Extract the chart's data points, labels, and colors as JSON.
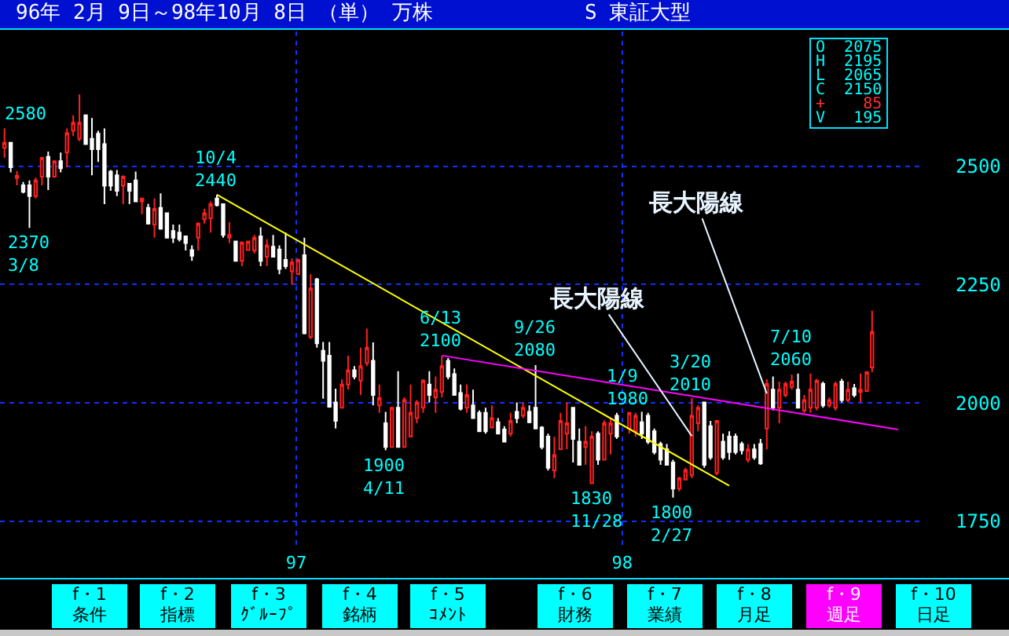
{
  "chart_data": {
    "type": "candlestick",
    "title": "96年 2月 9日～98年10月 8日 （単） 万株",
    "subtitle": "S 東証大型",
    "x": [
      "1996-02-09",
      "1996-02-16",
      "1996-02-23",
      "1996-03-01",
      "1996-03-08",
      "1996-03-15",
      "1996-03-22",
      "1996-03-29",
      "1996-04-05",
      "1996-04-12",
      "1996-04-19",
      "1996-04-26",
      "1996-05-03",
      "1996-05-10",
      "1996-05-17",
      "1996-05-24",
      "1996-05-31",
      "1996-06-07",
      "1996-06-14",
      "1996-06-21",
      "1996-06-28",
      "1996-07-05",
      "1996-07-12",
      "1996-07-19",
      "1996-07-26",
      "1996-08-02",
      "1996-08-09",
      "1996-08-16",
      "1996-08-23",
      "1996-08-30",
      "1996-09-06",
      "1996-09-13",
      "1996-09-20",
      "1996-09-27",
      "1996-10-04",
      "1996-10-11",
      "1996-10-18",
      "1996-10-25",
      "1996-11-01",
      "1996-11-08",
      "1996-11-15",
      "1996-11-22",
      "1996-11-29",
      "1996-12-06",
      "1996-12-13",
      "1996-12-20",
      "1996-12-27",
      "1997-01-03",
      "1997-01-10",
      "1997-01-17",
      "1997-01-24",
      "1997-01-31",
      "1997-02-07",
      "1997-02-14",
      "1997-02-21",
      "1997-02-28",
      "1997-03-07",
      "1997-03-14",
      "1997-03-21",
      "1997-03-28",
      "1997-04-04",
      "1997-04-11",
      "1997-04-18",
      "1997-04-25",
      "1997-05-02",
      "1997-05-09",
      "1997-05-16",
      "1997-05-23",
      "1997-05-30",
      "1997-06-06",
      "1997-06-13",
      "1997-06-20",
      "1997-06-27",
      "1997-07-04",
      "1997-07-11",
      "1997-07-18",
      "1997-07-25",
      "1997-08-01",
      "1997-08-08",
      "1997-08-15",
      "1997-08-22",
      "1997-08-29",
      "1997-09-05",
      "1997-09-12",
      "1997-09-19",
      "1997-09-26",
      "1997-10-03",
      "1997-10-10",
      "1997-10-17",
      "1997-10-24",
      "1997-10-31",
      "1997-11-07",
      "1997-11-14",
      "1997-11-21",
      "1997-11-28",
      "1997-12-05",
      "1997-12-12",
      "1997-12-19",
      "1997-12-26",
      "1998-01-09",
      "1998-01-16",
      "1998-01-23",
      "1998-01-30",
      "1998-02-06",
      "1998-02-13",
      "1998-02-20",
      "1998-02-27",
      "1998-03-06",
      "1998-03-13",
      "1998-03-20",
      "1998-03-27",
      "1998-04-03",
      "1998-04-10",
      "1998-04-17",
      "1998-04-24",
      "1998-05-01",
      "1998-05-08",
      "1998-05-15",
      "1998-05-22",
      "1998-05-29",
      "1998-06-05",
      "1998-06-12",
      "1998-06-19",
      "1998-06-26",
      "1998-07-03",
      "1998-07-10",
      "1998-07-17",
      "1998-07-24",
      "1998-07-31",
      "1998-08-07",
      "1998-08-14",
      "1998-08-21",
      "1998-08-28",
      "1998-09-04",
      "1998-09-11",
      "1998-09-18",
      "1998-09-25",
      "1998-10-02",
      "1998-10-08"
    ],
    "ohlc": [
      [
        2539,
        2580,
        2518,
        2550
      ],
      [
        2550,
        2550,
        2487,
        2498
      ],
      [
        2475,
        2490,
        2460,
        2480
      ],
      [
        2460,
        2467,
        2443,
        2446
      ],
      [
        2460,
        2470,
        2370,
        2437
      ],
      [
        2437,
        2476,
        2432,
        2470
      ],
      [
        2478,
        2520,
        2460,
        2518
      ],
      [
        2520,
        2531,
        2450,
        2478
      ],
      [
        2478,
        2511,
        2476,
        2511
      ],
      [
        2511,
        2529,
        2487,
        2496
      ],
      [
        2529,
        2580,
        2498,
        2570
      ],
      [
        2575,
        2608,
        2564,
        2592
      ],
      [
        2558,
        2652,
        2553,
        2592
      ],
      [
        2608,
        2608,
        2547,
        2547
      ],
      [
        2558,
        2602,
        2481,
        2536
      ],
      [
        2569,
        2575,
        2509,
        2536
      ],
      [
        2547,
        2580,
        2420,
        2459
      ],
      [
        2489,
        2492,
        2448,
        2459
      ],
      [
        2481,
        2492,
        2437,
        2448
      ],
      [
        2459,
        2481,
        2420,
        2478
      ],
      [
        2463,
        2465,
        2420,
        2448
      ],
      [
        2470,
        2489,
        2426,
        2426
      ],
      [
        2426,
        2432,
        2399,
        2432
      ],
      [
        2412,
        2421,
        2377,
        2379
      ],
      [
        2377,
        2432,
        2349,
        2410
      ],
      [
        2412,
        2443,
        2366,
        2368
      ],
      [
        2401,
        2401,
        2349,
        2349
      ],
      [
        2363,
        2377,
        2338,
        2349
      ],
      [
        2360,
        2377,
        2341,
        2346
      ],
      [
        2352,
        2352,
        2322,
        2338
      ],
      [
        2323,
        2333,
        2300,
        2311
      ],
      [
        2349,
        2382,
        2322,
        2379
      ],
      [
        2388,
        2410,
        2379,
        2401
      ],
      [
        2390,
        2426,
        2360,
        2420
      ],
      [
        2432,
        2440,
        2415,
        2418
      ],
      [
        2420,
        2420,
        2349,
        2355
      ],
      [
        2349,
        2382,
        2338,
        2355
      ],
      [
        2341,
        2343,
        2299,
        2300
      ],
      [
        2300,
        2341,
        2289,
        2339
      ],
      [
        2323,
        2343,
        2322,
        2341
      ],
      [
        2322,
        2355,
        2316,
        2349
      ],
      [
        2352,
        2371,
        2289,
        2300
      ],
      [
        2309,
        2346,
        2289,
        2333
      ],
      [
        2330,
        2355,
        2309,
        2309
      ],
      [
        2324,
        2333,
        2272,
        2283
      ],
      [
        2302,
        2360,
        2283,
        2289
      ],
      [
        2278,
        2305,
        2250,
        2297
      ],
      [
        2272,
        2305,
        2272,
        2302
      ],
      [
        2312,
        2349,
        2145,
        2147
      ],
      [
        2139,
        2272,
        2135,
        2242
      ],
      [
        2261,
        2264,
        2117,
        2126
      ],
      [
        2110,
        2129,
        2009,
        2089
      ],
      [
        2100,
        2129,
        1990,
        1992
      ],
      [
        2001,
        2030,
        1946,
        1962
      ],
      [
        1990,
        2050,
        1990,
        2039
      ],
      [
        2039,
        2100,
        2028,
        2069
      ],
      [
        2069,
        2078,
        2050,
        2056
      ],
      [
        2047,
        2117,
        2017,
        2078
      ],
      [
        2084,
        2157,
        2078,
        2117
      ],
      [
        2089,
        2128,
        1995,
        2017
      ],
      [
        1995,
        2039,
        1979,
        2010
      ],
      [
        1957,
        1981,
        1900,
        1907
      ],
      [
        1907,
        1990,
        1907,
        1990
      ],
      [
        1990,
        2067,
        1907,
        1907
      ],
      [
        1907,
        2012,
        1907,
        2006
      ],
      [
        1929,
        2039,
        1929,
        1979
      ],
      [
        1968,
        2006,
        1957,
        2001
      ],
      [
        1990,
        2050,
        1979,
        2047
      ],
      [
        2039,
        2067,
        2001,
        2017
      ],
      [
        2012,
        2056,
        1979,
        2028
      ],
      [
        2023,
        2100,
        2012,
        2078
      ],
      [
        2089,
        2095,
        2050,
        2056
      ],
      [
        2061,
        2073,
        2017,
        2017
      ],
      [
        2021,
        2039,
        1984,
        1988
      ],
      [
        1990,
        2039,
        1979,
        2017
      ],
      [
        1995,
        2028,
        1968,
        1968
      ],
      [
        1979,
        1984,
        1940,
        1940
      ],
      [
        1979,
        1990,
        1935,
        1940
      ],
      [
        1948,
        1995,
        1946,
        1968
      ],
      [
        1959,
        1968,
        1935,
        1935
      ],
      [
        1944,
        1951,
        1918,
        1918
      ],
      [
        1935,
        1979,
        1929,
        1962
      ],
      [
        1981,
        2001,
        1957,
        1968
      ],
      [
        1973,
        2001,
        1968,
        1990
      ],
      [
        1981,
        1995,
        1957,
        1959
      ],
      [
        1990,
        2080,
        1946,
        1946
      ],
      [
        1948,
        1951,
        1902,
        1907
      ],
      [
        1929,
        1935,
        1857,
        1863
      ],
      [
        1857,
        1929,
        1841,
        1890
      ],
      [
        1902,
        1979,
        1902,
        1962
      ],
      [
        1935,
        2001,
        1902,
        1957
      ],
      [
        1990,
        1990,
        1874,
        1924
      ],
      [
        1918,
        1946,
        1869,
        1869
      ],
      [
        1907,
        1951,
        1869,
        1918
      ],
      [
        1830,
        1940,
        1830,
        1929
      ],
      [
        1935,
        1940,
        1869,
        1880
      ],
      [
        1880,
        1963,
        1880,
        1957
      ],
      [
        1935,
        1968,
        1891,
        1957
      ],
      [
        1973,
        1979,
        1924,
        1929
      ],
      [
        1946,
        1980,
        1935,
        1979
      ],
      [
        1940,
        1979,
        1929,
        1973
      ],
      [
        1959,
        1981,
        1924,
        1935
      ],
      [
        1973,
        1979,
        1913,
        1918
      ],
      [
        1940,
        1946,
        1891,
        1896
      ],
      [
        1913,
        1918,
        1869,
        1880
      ],
      [
        1902,
        1913,
        1869,
        1869
      ],
      [
        1874,
        1880,
        1800,
        1819
      ],
      [
        1819,
        1844,
        1813,
        1841
      ],
      [
        1838,
        1863,
        1836,
        1858
      ],
      [
        1847,
        2010,
        1841,
        1973
      ],
      [
        1957,
        1995,
        1940,
        1990
      ],
      [
        2001,
        2001,
        1863,
        1869
      ],
      [
        1951,
        1962,
        1880,
        1885
      ],
      [
        1852,
        1962,
        1847,
        1962
      ],
      [
        1918,
        1935,
        1880,
        1885
      ],
      [
        1929,
        1940,
        1880,
        1896
      ],
      [
        1929,
        1935,
        1891,
        1896
      ],
      [
        1913,
        1918,
        1891,
        1900
      ],
      [
        1880,
        1913,
        1874,
        1902
      ],
      [
        1902,
        1913,
        1880,
        1885
      ],
      [
        1913,
        1924,
        1869,
        1872
      ],
      [
        1946,
        2050,
        1902,
        2040
      ],
      [
        2028,
        2056,
        1984,
        1990
      ],
      [
        1990,
        2045,
        1957,
        2028
      ],
      [
        2017,
        2045,
        2012,
        2040
      ],
      [
        2034,
        2060,
        2028,
        2045
      ],
      [
        2028,
        2062,
        1990,
        1990
      ],
      [
        1984,
        2017,
        1979,
        2006
      ],
      [
        1990,
        2062,
        1979,
        2028
      ],
      [
        1990,
        2051,
        1984,
        2047
      ],
      [
        2040,
        2045,
        1990,
        1995
      ],
      [
        1995,
        2012,
        1990,
        2006
      ],
      [
        1990,
        2045,
        1984,
        2040
      ],
      [
        2045,
        2051,
        2001,
        2006
      ],
      [
        2006,
        2045,
        2001,
        2028
      ],
      [
        2031,
        2040,
        2012,
        2017
      ],
      [
        2023,
        2062,
        2001,
        2028
      ],
      [
        2025,
        2067,
        2023,
        2065
      ],
      [
        2075,
        2195,
        2065,
        2150
      ]
    ],
    "series": [
      {
        "type": "line",
        "color": "#ffff00",
        "x": [
          "1996-10-04",
          "1998-05-01"
        ],
        "values": [
          2440,
          1825
        ]
      },
      {
        "type": "line",
        "color": "#ff00ff",
        "x": [
          "1997-06-13",
          "1998-11-06"
        ],
        "values": [
          2100,
          1944
        ]
      }
    ],
    "xlim": [
      "1996-02-04",
      "1998-11-30"
    ],
    "xticks": [
      {
        "value": "1997-01-01",
        "label": "97"
      },
      {
        "value": "1998-01-01",
        "label": "98"
      }
    ],
    "ylim": [
      1690,
      2785
    ],
    "yticks": [
      1750,
      2000,
      2250,
      2500
    ],
    "grid": true,
    "annotations": [
      "O  2075\nH  2195\nL  2065\nC  2150\n+    85\nV   195",
      "f・1\n条件",
      "f・2\n指標",
      "f・3\nｸﾞﾙｰﾌﾟ",
      "f・4\n銘柄",
      "f・5\nｺﾒﾝﾄ",
      "f・6\n財務",
      "f・7\n業績",
      "f・8\n月足",
      "f・9\n週足",
      "f・10\n日足",
      {
        "text": "2580",
        "x": "1996-02-09",
        "y": 2580
      },
      {
        "text": "2370\n3/8",
        "x": "1996-03-08",
        "y": 2370
      },
      {
        "text": "10/4\n2440",
        "x": "1996-10-04",
        "y": 2440
      },
      {
        "text": "1900\n4/11",
        "x": "1997-04-11",
        "y": 1900
      },
      {
        "text": "6/13\n2100",
        "x": "1997-06-13",
        "y": 2100
      },
      {
        "text": "9/26\n2080",
        "x": "1997-09-26",
        "y": 2080
      },
      {
        "text": "1830\n11/28",
        "x": "1997-11-28",
        "y": 1830
      },
      {
        "text": "1/9\n1980",
        "x": "1998-01-09",
        "y": 1980
      },
      {
        "text": "1800\n2/27",
        "x": "1998-02-27",
        "y": 1800
      },
      {
        "text": "3/20\n2010",
        "x": "1998-03-20",
        "y": 2010
      },
      {
        "text": "7/10\n2060",
        "x": "1998-07-10",
        "y": 2060
      },
      {
        "text": "長大陽線",
        "x": "1998-03-20",
        "y": 1930
      },
      {
        "text": "長大陽線",
        "x": "1998-06-12",
        "y": 2020
      }
    ]
  }
}
